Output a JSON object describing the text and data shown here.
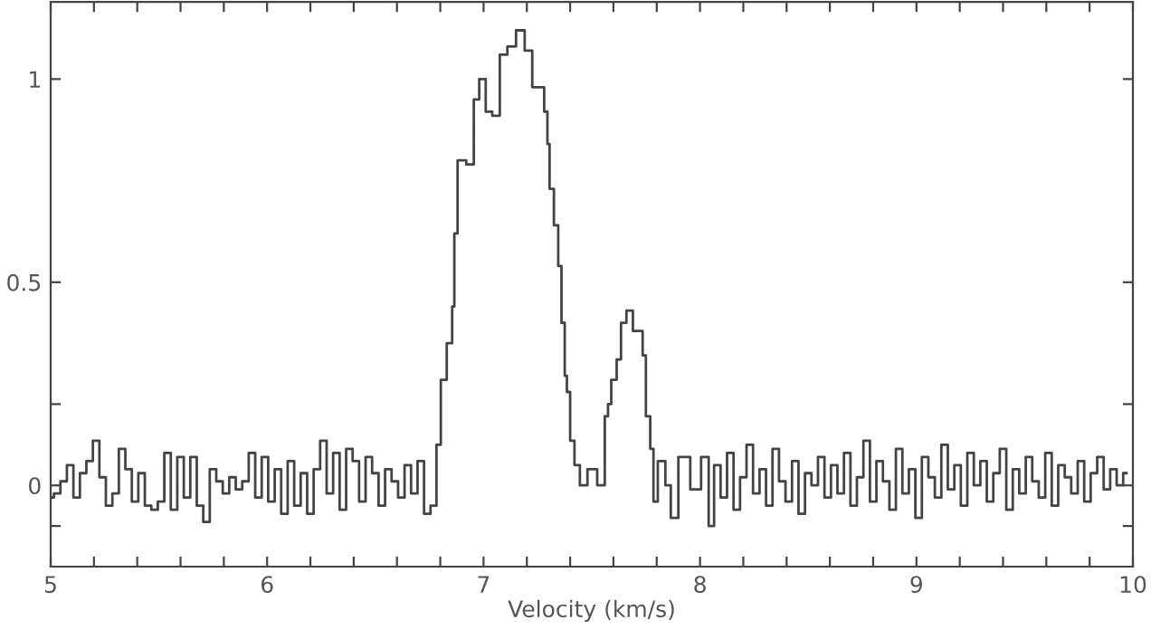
{
  "chart_data": {
    "type": "step",
    "xlabel": "Velocity (km/s)",
    "xlim": [
      5,
      10
    ],
    "ylim": [
      -0.2,
      1.19
    ],
    "xticks": [
      5,
      {
        "value": 5.2,
        "label": null
      },
      {
        "value": 5.4,
        "label": null
      },
      {
        "value": 5.6,
        "label": null
      },
      {
        "value": 5.8,
        "label": null
      },
      6,
      {
        "value": 6.2,
        "label": null
      },
      {
        "value": 6.4,
        "label": null
      },
      {
        "value": 6.6,
        "label": null
      },
      {
        "value": 6.8,
        "label": null
      },
      7,
      {
        "value": 7.2,
        "label": null
      },
      {
        "value": 7.4,
        "label": null
      },
      {
        "value": 7.6,
        "label": null
      },
      {
        "value": 7.8,
        "label": null
      },
      8,
      {
        "value": 8.2,
        "label": null
      },
      {
        "value": 8.4,
        "label": null
      },
      {
        "value": 8.6,
        "label": null
      },
      {
        "value": 8.8,
        "label": null
      },
      9,
      {
        "value": 9.2,
        "label": null
      },
      {
        "value": 9.4,
        "label": null
      },
      {
        "value": 9.6,
        "label": null
      },
      {
        "value": 9.8,
        "label": null
      },
      10
    ],
    "yticks": [
      {
        "value": -0.1,
        "label": null
      },
      0,
      {
        "value": 0.2,
        "label": null
      },
      0.5,
      1
    ],
    "grid": false,
    "legend": false,
    "series": [
      {
        "color": "#444444",
        "x": [
          5.0,
          5.03,
          5.06,
          5.09,
          5.12,
          5.15,
          5.18,
          5.21,
          5.24,
          5.27,
          5.3,
          5.33,
          5.36,
          5.39,
          5.42,
          5.45,
          5.48,
          5.51,
          5.54,
          5.57,
          5.6,
          5.63,
          5.66,
          5.69,
          5.72,
          5.75,
          5.78,
          5.81,
          5.84,
          5.87,
          5.9,
          5.93,
          5.96,
          5.99,
          6.02,
          6.05,
          6.08,
          6.11,
          6.14,
          6.17,
          6.2,
          6.23,
          6.26,
          6.29,
          6.32,
          6.35,
          6.38,
          6.41,
          6.44,
          6.47,
          6.5,
          6.53,
          6.56,
          6.59,
          6.62,
          6.65,
          6.68,
          6.71,
          6.74,
          6.77,
          6.795,
          6.81,
          6.85,
          6.86,
          6.87,
          6.89,
          6.95,
          6.96,
          7.0,
          7.02,
          7.06,
          7.09,
          7.13,
          7.17,
          7.21,
          7.24,
          7.27,
          7.29,
          7.3,
          7.31,
          7.34,
          7.35,
          7.37,
          7.38,
          7.39,
          7.41,
          7.43,
          7.46,
          7.5,
          7.55,
          7.57,
          7.58,
          7.6,
          7.63,
          7.64,
          7.68,
          7.7,
          7.73,
          7.74,
          7.76,
          7.78,
          7.79,
          7.82,
          7.86,
          7.87,
          7.93,
          7.98,
          8.03,
          8.05,
          8.08,
          8.11,
          8.14,
          8.17,
          8.2,
          8.23,
          8.26,
          8.29,
          8.32,
          8.35,
          8.38,
          8.41,
          8.44,
          8.47,
          8.5,
          8.53,
          8.56,
          8.59,
          8.62,
          8.65,
          8.68,
          8.71,
          8.74,
          8.77,
          8.8,
          8.83,
          8.86,
          8.89,
          8.92,
          8.95,
          8.98,
          9.01,
          9.04,
          9.07,
          9.1,
          9.13,
          9.16,
          9.19,
          9.22,
          9.25,
          9.28,
          9.31,
          9.34,
          9.37,
          9.4,
          9.43,
          9.46,
          9.49,
          9.52,
          9.55,
          9.58,
          9.61,
          9.64,
          9.67,
          9.7,
          9.73,
          9.76,
          9.79,
          9.82,
          9.85,
          9.88,
          9.91,
          9.94,
          9.97
        ],
        "values": [
          -0.03,
          -0.02,
          0.01,
          0.05,
          -0.03,
          0.03,
          0.06,
          0.11,
          0.02,
          -0.05,
          -0.02,
          0.09,
          0.04,
          -0.04,
          0.03,
          -0.05,
          -0.06,
          -0.04,
          0.08,
          -0.06,
          0.07,
          -0.03,
          0.07,
          -0.05,
          -0.09,
          0.04,
          0.01,
          -0.02,
          0.02,
          -0.01,
          0.01,
          0.08,
          -0.03,
          0.07,
          -0.04,
          0.04,
          -0.07,
          0.06,
          -0.05,
          0.03,
          -0.07,
          0.04,
          0.11,
          -0.02,
          0.08,
          -0.06,
          0.09,
          0.06,
          -0.04,
          0.07,
          0.03,
          -0.05,
          0.04,
          0.01,
          -0.03,
          0.05,
          -0.02,
          0.06,
          -0.07,
          -0.05,
          0.1,
          0.26,
          0.35,
          0.44,
          0.62,
          0.8,
          0.79,
          0.95,
          1.0,
          0.92,
          0.91,
          1.06,
          1.08,
          1.12,
          1.07,
          0.98,
          0.98,
          0.92,
          0.84,
          0.73,
          0.64,
          0.54,
          0.4,
          0.27,
          0.23,
          0.11,
          0.05,
          0.0,
          0.04,
          0.0,
          0.17,
          0.2,
          0.26,
          0.31,
          0.4,
          0.43,
          0.38,
          0.38,
          0.32,
          0.17,
          0.09,
          -0.04,
          0.06,
          0.0,
          -0.08,
          0.07,
          -0.01,
          0.07,
          -0.1,
          0.05,
          -0.03,
          0.08,
          -0.06,
          0.02,
          0.1,
          -0.02,
          0.04,
          -0.05,
          0.09,
          0.01,
          -0.04,
          0.06,
          -0.07,
          0.03,
          0.0,
          0.07,
          -0.03,
          0.05,
          -0.02,
          0.08,
          -0.05,
          0.02,
          0.11,
          -0.04,
          0.06,
          0.01,
          -0.06,
          0.09,
          -0.02,
          0.04,
          -0.08,
          0.07,
          0.02,
          -0.03,
          0.1,
          -0.01,
          0.05,
          -0.05,
          0.08,
          0.0,
          0.06,
          -0.04,
          0.03,
          0.09,
          -0.06,
          0.04,
          -0.02,
          0.07,
          0.01,
          -0.03,
          0.08,
          -0.05,
          0.05,
          0.02,
          -0.02,
          0.06,
          -0.04,
          0.03,
          0.07,
          -0.01,
          0.04,
          0.0,
          0.03
        ]
      }
    ]
  }
}
